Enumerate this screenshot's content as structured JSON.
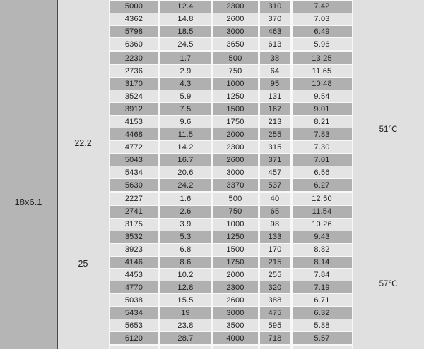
{
  "table": {
    "prop_label": "18x6.1",
    "sections": [
      {
        "voltage": "",
        "temp": "",
        "rows": [
          [
            "5000",
            "12.4",
            "2300",
            "310",
            "7.42"
          ],
          [
            "4362",
            "14.8",
            "2600",
            "370",
            "7.03"
          ],
          [
            "5798",
            "18.5",
            "3000",
            "463",
            "6.49"
          ],
          [
            "6360",
            "24.5",
            "3650",
            "613",
            "5.96"
          ]
        ]
      },
      {
        "voltage": "22.2",
        "temp": "51℃",
        "rows": [
          [
            "2230",
            "1.7",
            "500",
            "38",
            "13.25"
          ],
          [
            "2736",
            "2.9",
            "750",
            "64",
            "11.65"
          ],
          [
            "3170",
            "4.3",
            "1000",
            "95",
            "10.48"
          ],
          [
            "3524",
            "5.9",
            "1250",
            "131",
            "9.54"
          ],
          [
            "3912",
            "7.5",
            "1500",
            "167",
            "9.01"
          ],
          [
            "4153",
            "9.6",
            "1750",
            "213",
            "8.21"
          ],
          [
            "4468",
            "11.5",
            "2000",
            "255",
            "7.83"
          ],
          [
            "4772",
            "14.2",
            "2300",
            "315",
            "7.30"
          ],
          [
            "5043",
            "16.7",
            "2600",
            "371",
            "7.01"
          ],
          [
            "5434",
            "20.6",
            "3000",
            "457",
            "6.56"
          ],
          [
            "5630",
            "24.2",
            "3370",
            "537",
            "6.27"
          ]
        ]
      },
      {
        "voltage": "25",
        "temp": "57℃",
        "rows": [
          [
            "2227",
            "1.6",
            "500",
            "40",
            "12.50"
          ],
          [
            "2741",
            "2.6",
            "750",
            "65",
            "11.54"
          ],
          [
            "3175",
            "3.9",
            "1000",
            "98",
            "10.26"
          ],
          [
            "3532",
            "5.3",
            "1250",
            "133",
            "9.43"
          ],
          [
            "3923",
            "6.8",
            "1500",
            "170",
            "8.82"
          ],
          [
            "4146",
            "8.6",
            "1750",
            "215",
            "8.14"
          ],
          [
            "4453",
            "10.2",
            "2000",
            "255",
            "7.84"
          ],
          [
            "4770",
            "12.8",
            "2300",
            "320",
            "7.19"
          ],
          [
            "5038",
            "15.5",
            "2600",
            "388",
            "6.71"
          ],
          [
            "5434",
            "19",
            "3000",
            "475",
            "6.32"
          ],
          [
            "5653",
            "23.8",
            "3500",
            "595",
            "5.88"
          ],
          [
            "6120",
            "28.7",
            "4000",
            "718",
            "5.57"
          ]
        ]
      }
    ]
  },
  "colors": {
    "row_dark": "#b0b0b0",
    "row_light": "#e4e4e4",
    "panel_dark": "#b5b5b5",
    "panel_light": "#e0e0e0",
    "divider": "#4a4a4a",
    "grid_gap": "#f8f8f8"
  }
}
